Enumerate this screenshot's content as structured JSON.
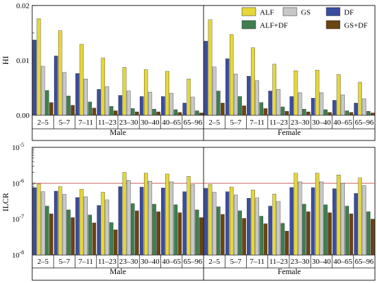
{
  "chart_data": [
    {
      "type": "bar",
      "ylabel": "HI",
      "yscale": "linear",
      "ylim": [
        0,
        0.02
      ],
      "yticks": [
        "0.00",
        "0.01",
        "0.02"
      ],
      "categories": [
        "2–5",
        "5–7",
        "7–11",
        "11–23",
        "23–30",
        "30–40",
        "40–65",
        "65–96"
      ],
      "groups": [
        "Male",
        "Female"
      ],
      "legend": {
        "placement": "top-right",
        "entries": [
          "ALF",
          "GS",
          "DF",
          "ALF+DF",
          "GS+DF"
        ]
      },
      "series": [
        {
          "name": "DF",
          "color": "#3a4da0",
          "male": [
            0.0137,
            0.0108,
            0.0076,
            0.0047,
            0.0036,
            0.0034,
            0.0034,
            0.0022
          ],
          "female": [
            0.0135,
            0.0103,
            0.0071,
            0.0044,
            0.0034,
            0.0031,
            0.0027,
            0.0022
          ]
        },
        {
          "name": "ALF",
          "color": "#e6d73a",
          "male": [
            0.0176,
            0.0154,
            0.0129,
            0.0104,
            0.0087,
            0.0083,
            0.008,
            0.0066
          ],
          "female": [
            0.0174,
            0.0147,
            0.0123,
            0.0093,
            0.0081,
            0.0082,
            0.0074,
            0.006
          ]
        },
        {
          "name": "GS",
          "color": "#c8c8c8",
          "male": [
            0.0089,
            0.0078,
            0.0066,
            0.0052,
            0.0044,
            0.0042,
            0.004,
            0.0033
          ],
          "female": [
            0.0088,
            0.0075,
            0.0063,
            0.0047,
            0.0041,
            0.0041,
            0.0037,
            0.003
          ]
        },
        {
          "name": "ALF+DF",
          "color": "#3f7f4f",
          "male": [
            0.0045,
            0.0035,
            0.0024,
            0.0016,
            0.0012,
            0.0011,
            0.001,
            0.0008
          ],
          "female": [
            0.0044,
            0.0034,
            0.0023,
            0.0015,
            0.0011,
            0.001,
            0.0008,
            0.0007
          ]
        },
        {
          "name": "GS+DF",
          "color": "#6b4410",
          "male": [
            0.0023,
            0.0018,
            0.0013,
            0.0008,
            0.0006,
            0.0006,
            0.0005,
            0.0004
          ],
          "female": [
            0.0022,
            0.0017,
            0.0012,
            0.0007,
            0.0006,
            0.0005,
            0.0005,
            0.0004
          ]
        }
      ]
    },
    {
      "type": "bar",
      "ylabel": "ILCR",
      "yscale": "log",
      "ylim": [
        1e-08,
        1e-05
      ],
      "yticks": [
        {
          "base": "10",
          "exp": "-5"
        },
        {
          "base": "10",
          "exp": "-6"
        },
        {
          "base": "10",
          "exp": "-7"
        },
        {
          "base": "10",
          "exp": "-8"
        }
      ],
      "reference_line": {
        "value": 1e-06,
        "color": "#c0504d"
      },
      "categories": [
        "2–5",
        "5–7",
        "7–11",
        "11–23",
        "23–30",
        "30–40",
        "40–65",
        "65–96"
      ],
      "groups": [
        "Male",
        "Female"
      ],
      "series": [
        {
          "name": "DF",
          "color": "#3a4da0",
          "male": [
            7.5e-07,
            6e-07,
            4e-07,
            2.4e-07,
            8e-07,
            7.8e-07,
            7.4e-07,
            5.8e-07
          ],
          "female": [
            7.2e-07,
            5.8e-07,
            3.8e-07,
            2.3e-07,
            7.6e-07,
            7.5e-07,
            7e-07,
            5.2e-07
          ]
        },
        {
          "name": "ALF",
          "color": "#e6d73a",
          "male": [
            9.6e-07,
            8e-07,
            6.8e-07,
            5.6e-07,
            2e-06,
            1.9e-06,
            1.8e-06,
            1.55e-06
          ],
          "female": [
            9.2e-07,
            7.8e-07,
            6.5e-07,
            5e-07,
            1.9e-06,
            1.9e-06,
            1.7e-06,
            1.4e-06
          ]
        },
        {
          "name": "GS",
          "color": "#c8c8c8",
          "male": [
            5.8e-07,
            4.9e-07,
            4.2e-07,
            3.4e-07,
            1.2e-06,
            1.15e-06,
            1.1e-06,
            9.2e-07
          ],
          "female": [
            5.6e-07,
            4.7e-07,
            3.9e-07,
            3.1e-07,
            1.1e-06,
            1.1e-06,
            1e-06,
            8.6e-07
          ]
        },
        {
          "name": "ALF+DF",
          "color": "#3f7f4f",
          "male": [
            2.3e-07,
            1.8e-07,
            1.3e-07,
            8e-08,
            2.7e-07,
            2.6e-07,
            2.5e-07,
            1.8e-07
          ],
          "female": [
            2.2e-07,
            1.7e-07,
            1.2e-07,
            7.6e-08,
            2.6e-07,
            2.5e-07,
            2.3e-07,
            1.6e-07
          ]
        },
        {
          "name": "GS+DF",
          "color": "#6b4410",
          "male": [
            1.4e-07,
            1.1e-07,
            7.8e-08,
            5e-08,
            1.7e-07,
            1.6e-07,
            1.5e-07,
            1.1e-07
          ],
          "female": [
            1.35e-07,
            1.05e-07,
            7.4e-08,
            4.6e-08,
            1.6e-07,
            1.5e-07,
            1.4e-07,
            1e-07
          ]
        }
      ]
    }
  ]
}
